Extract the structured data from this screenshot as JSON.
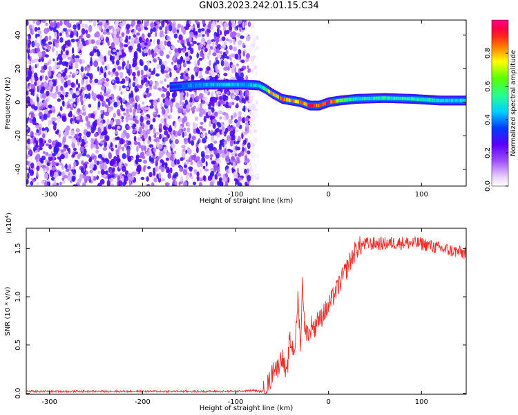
{
  "title": "GN03.2023.242.01.15.C34",
  "chart_data": [
    {
      "type": "heatmap",
      "xlabel": "Height of straight line (km)",
      "ylabel": "Frequency (Hz)",
      "xlim": [
        -325,
        148
      ],
      "ylim": [
        -50,
        49
      ],
      "xticks": [
        -300,
        -200,
        -100,
        0,
        100
      ],
      "yticks": [
        -40,
        -20,
        0,
        20,
        40
      ],
      "colorbar": {
        "label": "Normalized spectral amplitude",
        "ticks": [
          0.0,
          0.2,
          0.4,
          0.6,
          0.8
        ],
        "range": [
          0,
          1
        ],
        "colormap": "rainbow (white-purple-blue-cyan-green-yellow-red-magenta)"
      },
      "ridge": {
        "x": [
          -170,
          -150,
          -130,
          -110,
          -90,
          -75,
          -68,
          -60,
          -50,
          -40,
          -30,
          -20,
          -10,
          0,
          12,
          30,
          60,
          90,
          120,
          148
        ],
        "y": [
          9,
          10,
          10.5,
          10.5,
          10.5,
          10,
          8,
          5,
          2,
          1,
          0,
          -2,
          -2,
          0,
          1,
          2,
          2.5,
          2,
          1,
          1
        ],
        "amplitude": [
          0.3,
          0.4,
          0.45,
          0.5,
          0.45,
          0.5,
          0.6,
          0.85,
          0.9,
          0.85,
          0.85,
          0.95,
          0.9,
          1.0,
          0.7,
          0.5,
          0.55,
          0.55,
          0.5,
          0.5
        ]
      },
      "noise_extent_x": [
        -325,
        -85
      ]
    },
    {
      "type": "line",
      "xlabel": "Height of straight line (km)",
      "ylabel": "SNR (10 * v/v)",
      "yscale_note": "(x10",
      "yscale_exp": "4",
      "xlim": [
        -325,
        148
      ],
      "ylim": [
        -0.01,
        1.71
      ],
      "xticks": [
        -300,
        -200,
        -100,
        0,
        100
      ],
      "yticks": [
        0.0,
        0.5,
        1.0,
        1.5
      ],
      "ytick_labels": [
        "0.0",
        "0.5",
        "1.0",
        "1.5"
      ],
      "series": [
        {
          "color": "#e8302a",
          "x": [
            -325,
            -100,
            -80,
            -75,
            -70,
            -62,
            -58,
            -55,
            -50,
            -47,
            -45,
            -42,
            -40,
            -37,
            -35,
            -33,
            -30,
            -28,
            -25,
            -23,
            -20,
            -18,
            -15,
            -12,
            -10,
            -7,
            -5,
            -2,
            0,
            5,
            10,
            15,
            20,
            25,
            30,
            35,
            40,
            50,
            60,
            80,
            100,
            120,
            148
          ],
          "y": [
            0.02,
            0.02,
            0.03,
            0.02,
            0.02,
            0.15,
            0.3,
            0.25,
            0.4,
            0.25,
            0.15,
            0.55,
            0.5,
            0.45,
            0.6,
            1.0,
            0.5,
            1.15,
            0.6,
            0.65,
            0.6,
            0.75,
            0.65,
            0.8,
            0.75,
            0.8,
            0.85,
            0.85,
            0.9,
            1.0,
            1.1,
            1.2,
            1.3,
            1.4,
            1.5,
            1.53,
            1.55,
            1.55,
            1.55,
            1.56,
            1.55,
            1.5,
            1.45
          ]
        }
      ]
    }
  ]
}
